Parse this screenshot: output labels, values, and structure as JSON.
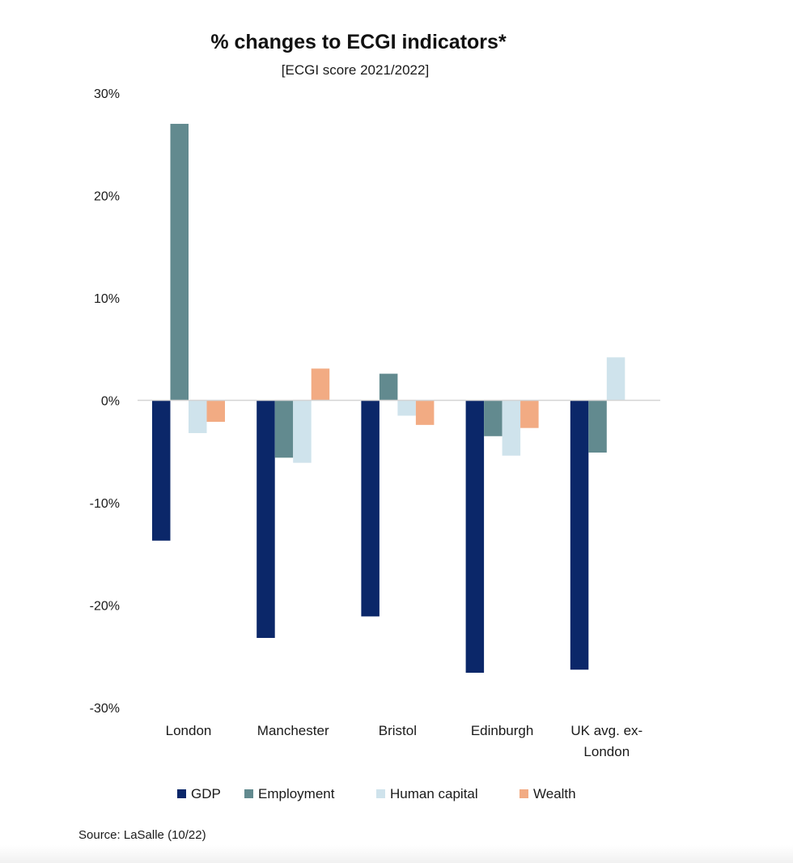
{
  "chart_data": {
    "type": "bar",
    "title": "% changes to ECGI indicators*",
    "subtitle": "[ECGI score 2021/2022]",
    "source": "Source: LaSalle (10/22)",
    "categories": [
      [
        "London"
      ],
      [
        "Manchester"
      ],
      [
        "Bristol"
      ],
      [
        "Edinburgh"
      ],
      [
        "UK avg. ex-",
        "London"
      ]
    ],
    "series": [
      {
        "name": "GDP",
        "color": "#0b2769",
        "values": [
          -13.7,
          -23.2,
          -21.1,
          -26.6,
          -26.3
        ]
      },
      {
        "name": "Employment",
        "color": "#628a8f",
        "values": [
          27.0,
          -5.6,
          2.6,
          -3.5,
          -5.1
        ]
      },
      {
        "name": "Human capital",
        "color": "#cfe3ec",
        "values": [
          -3.2,
          -6.1,
          -1.5,
          -5.4,
          4.2
        ]
      },
      {
        "name": "Wealth",
        "color": "#f2ab83",
        "values": [
          -2.1,
          3.1,
          -2.4,
          -2.7,
          0
        ]
      }
    ],
    "ylim": [
      -30,
      30
    ],
    "yticks": [
      30,
      20,
      10,
      0,
      -10,
      -20,
      -30
    ],
    "ytick_labels": [
      "30%",
      "20%",
      "10%",
      "0%",
      "-10%",
      "-20%",
      "-30%"
    ],
    "xlabel": "",
    "ylabel": "",
    "grid": false,
    "zero_line": true,
    "legend_position": "bottom"
  }
}
